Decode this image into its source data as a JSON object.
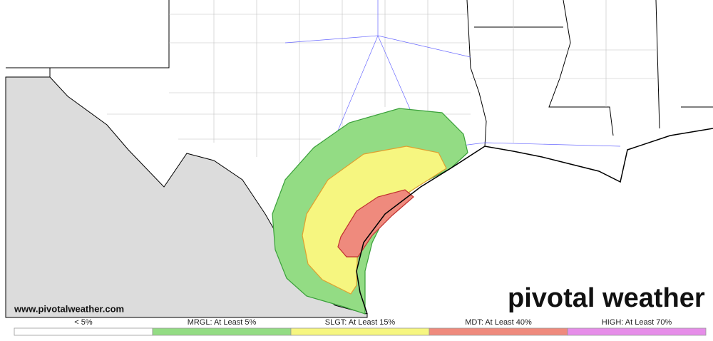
{
  "map": {
    "watermark": "www.pivotalweather.com",
    "logo": "pivotal weather",
    "legend": [
      {
        "label": "< 5%",
        "color": "#ffffff"
      },
      {
        "label": "MRGL: At Least 5%",
        "color": "#93dc84"
      },
      {
        "label": "SLGT: At Least 15%",
        "color": "#f6f680"
      },
      {
        "label": "MDT: At Least 40%",
        "color": "#ef8a7d"
      },
      {
        "label": "HIGH: At Least 70%",
        "color": "#e68de9"
      }
    ]
  }
}
